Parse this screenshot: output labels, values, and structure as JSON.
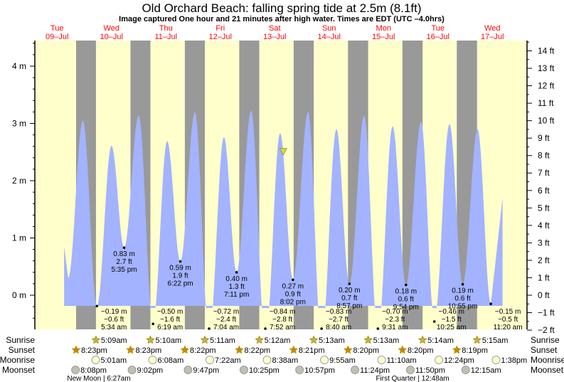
{
  "chart_data": {
    "type": "area",
    "title": "Old Orchard Beach: falling  spring tide at 2.5m (8.1ft)",
    "subtitle": "Image captured One hour and 21 minutes after high water. Times are EDT (UTC –4.0hrs)",
    "ylabel_left_unit": "m",
    "ylabel_right_unit": "ft",
    "ylim_m": [
      -0.6,
      4.4
    ],
    "left_ticks": [
      "4 m",
      "3 m",
      "2 m",
      "1 m",
      "0 m"
    ],
    "left_tick_values": [
      4,
      3,
      2,
      1,
      0
    ],
    "right_ticks": [
      "14 ft",
      "13 ft",
      "12 ft",
      "11 ft",
      "10 ft",
      "9 ft",
      "8 ft",
      "7 ft",
      "6 ft",
      "5 ft",
      "4 ft",
      "3 ft",
      "2 ft",
      "1 ft",
      "0 ft",
      "−1 ft",
      "−2 ft"
    ],
    "right_tick_values": [
      14,
      13,
      12,
      11,
      10,
      9,
      8,
      7,
      6,
      5,
      4,
      3,
      2,
      1,
      0,
      -1,
      -2
    ],
    "days": [
      {
        "dow": "Tue",
        "date": "09–Jul"
      },
      {
        "dow": "Wed",
        "date": "10–Jul"
      },
      {
        "dow": "Thu",
        "date": "11–Jul"
      },
      {
        "dow": "Fri",
        "date": "12–Jul"
      },
      {
        "dow": "Sat",
        "date": "13–Jul"
      },
      {
        "dow": "Sun",
        "date": "14–Jul"
      },
      {
        "dow": "Mon",
        "date": "15–Jul"
      },
      {
        "dow": "Tue",
        "date": "16–Jul"
      },
      {
        "dow": "Wed",
        "date": "17–Jul"
      }
    ],
    "curve_start": {
      "hour": 15.1,
      "m": 0.85
    },
    "curve_end": {
      "hour": 208.5,
      "m": 1.7
    },
    "extremes": [
      {
        "hour": 16.9,
        "m": 0.3,
        "type": "low"
      },
      {
        "hour": 23.4,
        "m": 3.05,
        "type": "high"
      },
      {
        "hour": 29.57,
        "m": -0.19,
        "type": "low",
        "label": true,
        "m_text": "−0.19 m",
        "ft_text": "−0.6 ft",
        "time": "5:34 am"
      },
      {
        "hour": 36.0,
        "m": 2.61,
        "type": "high"
      },
      {
        "hour": 41.58,
        "m": 0.83,
        "type": "low",
        "label": true,
        "m_text": "0.83 m",
        "ft_text": "2.7 ft",
        "time": "5:35 pm"
      },
      {
        "hour": 48.0,
        "m": 3.14,
        "type": "high"
      },
      {
        "hour": 54.32,
        "m": -0.5,
        "type": "low",
        "label": true,
        "m_text": "−0.50 m",
        "ft_text": "−1.6 ft",
        "time": "6:19 am"
      },
      {
        "hour": 60.55,
        "m": 2.69,
        "type": "high"
      },
      {
        "hour": 66.37,
        "m": 0.59,
        "type": "low",
        "label": true,
        "m_text": "0.59 m",
        "ft_text": "1.9 ft",
        "time": "6:22 pm"
      },
      {
        "hour": 72.8,
        "m": 3.2,
        "type": "high"
      },
      {
        "hour": 79.07,
        "m": -0.72,
        "type": "low",
        "label": true,
        "m_text": "−0.72 m",
        "ft_text": "−2.4 ft",
        "time": "7:04 am"
      },
      {
        "hour": 85.6,
        "m": 2.76,
        "type": "high"
      },
      {
        "hour": 91.18,
        "m": 0.4,
        "type": "low",
        "label": true,
        "m_text": "0.40 m",
        "ft_text": "1.3 ft",
        "time": "7:11 pm"
      },
      {
        "hour": 97.6,
        "m": 3.22,
        "type": "high"
      },
      {
        "hour": 103.87,
        "m": -0.84,
        "type": "low",
        "label": true,
        "m_text": "−0.84 m",
        "ft_text": "−2.8 ft",
        "time": "7:52 am"
      },
      {
        "hour": 110.4,
        "m": 2.83,
        "type": "high"
      },
      {
        "hour": 116.03,
        "m": 0.27,
        "type": "low",
        "label": true,
        "m_text": "0.27 m",
        "ft_text": "0.9 ft",
        "time": "8:02 pm"
      },
      {
        "hour": 122.7,
        "m": 3.2,
        "type": "high"
      },
      {
        "hour": 128.67,
        "m": -0.83,
        "type": "low",
        "label": true,
        "m_text": "−0.83 m",
        "ft_text": "−2.7 ft",
        "time": "8:40 am"
      },
      {
        "hour": 135.2,
        "m": 2.9,
        "type": "high"
      },
      {
        "hour": 140.95,
        "m": 0.2,
        "type": "low",
        "label": true,
        "m_text": "0.20 m",
        "ft_text": "0.7 ft",
        "time": "8:57 pm"
      },
      {
        "hour": 147.45,
        "m": 3.14,
        "type": "high"
      },
      {
        "hour": 153.52,
        "m": -0.7,
        "type": "low",
        "label": true,
        "m_text": "−0.70 m",
        "ft_text": "−2.3 ft",
        "time": "9:31 am"
      },
      {
        "hour": 160.0,
        "m": 2.95,
        "type": "high"
      },
      {
        "hour": 165.9,
        "m": 0.18,
        "type": "low",
        "label": true,
        "m_text": "0.18 m",
        "ft_text": "0.6 ft",
        "time": "9:54 pm"
      },
      {
        "hour": 172.55,
        "m": 3.03,
        "type": "high"
      },
      {
        "hour": 178.42,
        "m": -0.46,
        "type": "low",
        "label": true,
        "m_text": "−0.46 m",
        "ft_text": "−1.5 ft",
        "time": "10:25 am"
      },
      {
        "hour": 185.1,
        "m": 2.99,
        "type": "high"
      },
      {
        "hour": 190.92,
        "m": 0.19,
        "type": "low",
        "label": true,
        "m_text": "0.19 m",
        "ft_text": "0.6 ft",
        "time": "10:55 pm"
      },
      {
        "hour": 197.5,
        "m": 2.9,
        "type": "high"
      },
      {
        "hour": 203.33,
        "m": -0.15,
        "type": "low",
        "label": true,
        "m_text": "−0.15 m",
        "ft_text": "−0.5 ft",
        "time": "11:20 am"
      }
    ],
    "current": {
      "hour": 111.75,
      "m": 2.5
    },
    "rows": {
      "sunrise_label": "Sunrise",
      "sunset_label": "Sunset",
      "moonrise_label": "Moonrise",
      "moonset_label": "Moonset",
      "sunrise": [
        {
          "day": 1,
          "time": "5:09am"
        },
        {
          "day": 2,
          "time": "5:10am"
        },
        {
          "day": 3,
          "time": "5:11am"
        },
        {
          "day": 4,
          "time": "5:12am"
        },
        {
          "day": 5,
          "time": "5:13am"
        },
        {
          "day": 6,
          "time": "5:13am"
        },
        {
          "day": 7,
          "time": "5:14am"
        },
        {
          "day": 8,
          "time": "5:15am"
        }
      ],
      "sunset": [
        {
          "day": 0,
          "time": "8:23pm"
        },
        {
          "day": 1,
          "time": "8:23pm"
        },
        {
          "day": 2,
          "time": "8:22pm"
        },
        {
          "day": 3,
          "time": "8:22pm"
        },
        {
          "day": 4,
          "time": "8:21pm"
        },
        {
          "day": 5,
          "time": "8:20pm"
        },
        {
          "day": 6,
          "time": "8:20pm"
        },
        {
          "day": 7,
          "time": "8:19pm"
        }
      ],
      "moonrise": [
        {
          "day": 1,
          "time": "5:01am"
        },
        {
          "day": 2,
          "time": "6:08am"
        },
        {
          "day": 3,
          "time": "7:22am"
        },
        {
          "day": 4,
          "time": "8:38am"
        },
        {
          "day": 5,
          "time": "9:55am"
        },
        {
          "day": 6,
          "time": "11:10am"
        },
        {
          "day": 7,
          "time": "12:24pm"
        },
        {
          "day": 8,
          "time": "1:38pm"
        }
      ],
      "moonset": [
        {
          "day": 0,
          "time": "8:08pm"
        },
        {
          "day": 1,
          "time": "9:02pm"
        },
        {
          "day": 2,
          "time": "9:47pm"
        },
        {
          "day": 3,
          "time": "10:25pm"
        },
        {
          "day": 4,
          "time": "10:57pm"
        },
        {
          "day": 5,
          "time": "11:24pm"
        },
        {
          "day": 6,
          "time": "11:50pm"
        },
        {
          "day": 8,
          "time": "12:15am"
        }
      ],
      "phases": [
        {
          "day": 1,
          "time": "6:27am",
          "text": "New Moon | 6:27am"
        },
        {
          "day": 7,
          "time": "12:48am",
          "text": "First Quarter | 12:48am"
        }
      ]
    },
    "colors": {
      "water": "#a3b3ff",
      "day": "#ffffcc",
      "night": "#999999",
      "day_label": "#ff0000",
      "sun_star": "#c48a00",
      "sunrise_fill": "#b5b54a",
      "moonrise_fill": "#ffffcc",
      "moonset_fill": "#c0c0b0",
      "marker": "#dddd22"
    }
  }
}
